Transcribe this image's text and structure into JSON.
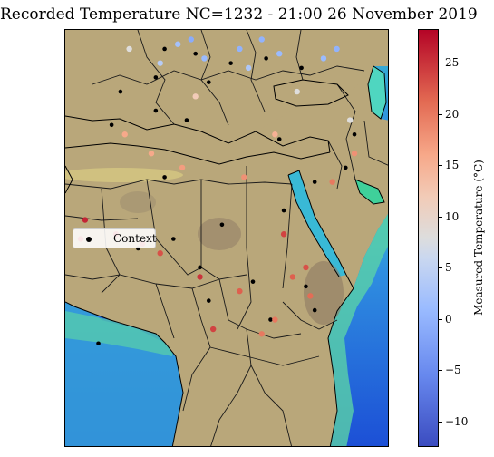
{
  "title": "Recorded Temperature NC=1232 - 21:00 26 November 2019",
  "legend": {
    "context_label": "Context"
  },
  "colorbar": {
    "label": "Measured Temperature (°C)",
    "min": -12.5,
    "max": 28.3,
    "ticks": [
      -10,
      -5,
      0,
      5,
      10,
      15,
      20,
      25
    ],
    "tick_labels": [
      "−10",
      "−5",
      "0",
      "5",
      "10",
      "15",
      "20",
      "25"
    ]
  },
  "colors": {
    "ocean_deep": "#1c4fd6",
    "ocean_mid": "#2f8fe0",
    "ocean_shallow": "#4dd6a4",
    "coast_yellow": "#f3ef86",
    "land": "#b9a77a",
    "land_dark": "#8e7a63",
    "context_point": "#000000"
  },
  "chart_data": {
    "type": "scatter",
    "subtype": "geographic",
    "title": "Recorded Temperature NC=1232 - 21:00 26 November 2019",
    "colorbar_label": "Measured Temperature (°C)",
    "series": [
      {
        "name": "Context",
        "note": "black points (sample)",
        "points": [
          {
            "lon": 5,
            "lat": 49
          },
          {
            "lon": 12,
            "lat": 48
          },
          {
            "lon": 20,
            "lat": 46
          },
          {
            "lon": 28,
            "lat": 47
          },
          {
            "lon": 36,
            "lat": 45
          },
          {
            "lon": 3,
            "lat": 43
          },
          {
            "lon": -5,
            "lat": 40
          },
          {
            "lon": 15,
            "lat": 42
          },
          {
            "lon": 31,
            "lat": 30
          },
          {
            "lon": 46,
            "lat": 24
          },
          {
            "lon": 39,
            "lat": 21
          },
          {
            "lon": 3,
            "lat": 36
          },
          {
            "lon": -7,
            "lat": 33
          },
          {
            "lon": 10,
            "lat": 34
          },
          {
            "lon": 5,
            "lat": 22
          },
          {
            "lon": 32,
            "lat": 15
          },
          {
            "lon": 18,
            "lat": 12
          },
          {
            "lon": 7,
            "lat": 9
          },
          {
            "lon": -1,
            "lat": 7
          },
          {
            "lon": 13,
            "lat": 3
          },
          {
            "lon": 25,
            "lat": 0
          },
          {
            "lon": 37,
            "lat": -1
          },
          {
            "lon": 15,
            "lat": -4
          },
          {
            "lon": 29,
            "lat": -8
          },
          {
            "lon": 39,
            "lat": -6
          },
          {
            "lon": -10,
            "lat": -13
          },
          {
            "lon": 48,
            "lat": 31
          }
        ]
      },
      {
        "name": "Measured",
        "note": "temperature-coloured points (sample, values °C)",
        "points": [
          {
            "lon": 8,
            "lat": 50,
            "temp": 2
          },
          {
            "lon": 14,
            "lat": 47,
            "temp": 1
          },
          {
            "lon": 22,
            "lat": 49,
            "temp": 0
          },
          {
            "lon": 27,
            "lat": 51,
            "temp": 0
          },
          {
            "lon": 31,
            "lat": 48,
            "temp": 1
          },
          {
            "lon": 24,
            "lat": 45,
            "temp": 3
          },
          {
            "lon": 11,
            "lat": 51,
            "temp": -1
          },
          {
            "lon": 41,
            "lat": 47,
            "temp": 1
          },
          {
            "lon": 44,
            "lat": 49,
            "temp": 0
          },
          {
            "lon": 4,
            "lat": 46,
            "temp": 4
          },
          {
            "lon": -3,
            "lat": 49,
            "temp": 8
          },
          {
            "lon": 12,
            "lat": 39,
            "temp": 12
          },
          {
            "lon": 35,
            "lat": 40,
            "temp": 8
          },
          {
            "lon": 47,
            "lat": 34,
            "temp": 8
          },
          {
            "lon": 48,
            "lat": 27,
            "temp": 18
          },
          {
            "lon": 43,
            "lat": 21,
            "temp": 20
          },
          {
            "lon": 30,
            "lat": 31,
            "temp": 15
          },
          {
            "lon": 2,
            "lat": 27,
            "temp": 16
          },
          {
            "lon": 9,
            "lat": 24,
            "temp": 17
          },
          {
            "lon": -4,
            "lat": 31,
            "temp": 16
          },
          {
            "lon": 23,
            "lat": 22,
            "temp": 18
          },
          {
            "lon": 32,
            "lat": 10,
            "temp": 24
          },
          {
            "lon": -13,
            "lat": 13,
            "temp": 26
          },
          {
            "lon": -6,
            "lat": 10,
            "temp": 25
          },
          {
            "lon": 0,
            "lat": 8,
            "temp": 24
          },
          {
            "lon": 4,
            "lat": 6,
            "temp": 23
          },
          {
            "lon": 13,
            "lat": 1,
            "temp": 25
          },
          {
            "lon": 22,
            "lat": -2,
            "temp": 22
          },
          {
            "lon": 34,
            "lat": 1,
            "temp": 22
          },
          {
            "lon": 38,
            "lat": -3,
            "temp": 21
          },
          {
            "lon": 37,
            "lat": 3,
            "temp": 23
          },
          {
            "lon": 30,
            "lat": -8,
            "temp": 20
          },
          {
            "lon": 16,
            "lat": -10,
            "temp": 24
          },
          {
            "lon": -14,
            "lat": 9,
            "temp": 25
          },
          {
            "lon": 27,
            "lat": -11,
            "temp": 20
          }
        ]
      }
    ]
  }
}
